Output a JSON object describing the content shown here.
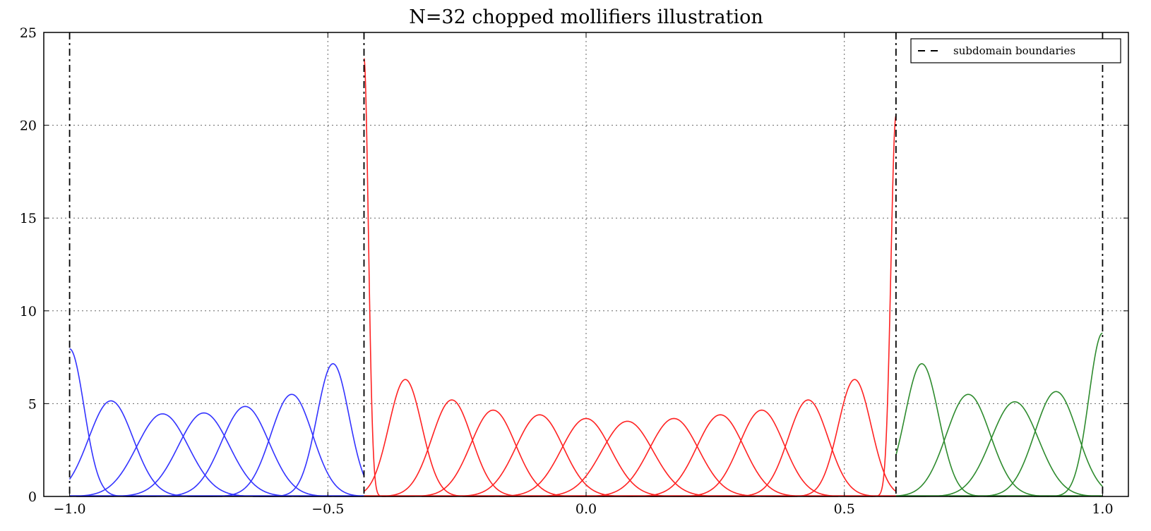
{
  "chart_data": {
    "type": "line",
    "title": "N=32 chopped mollifiers illustration",
    "xlabel": "",
    "ylabel": "",
    "xlim": [
      -1.05,
      1.05
    ],
    "ylim": [
      0,
      25
    ],
    "x_ticks": [
      -1.0,
      -0.5,
      0.0,
      0.5,
      1.0
    ],
    "x_tick_labels": [
      "−1.0",
      "−0.5",
      "0.0",
      "0.5",
      "1.0"
    ],
    "y_ticks": [
      0,
      5,
      10,
      15,
      20,
      25
    ],
    "y_tick_labels": [
      "0",
      "5",
      "10",
      "15",
      "20",
      "25"
    ],
    "grid": true,
    "grid_x": [
      -0.5,
      0.0,
      0.5
    ],
    "grid_y": [
      5,
      10,
      15,
      20
    ],
    "legend_position": "top-right",
    "legend": [
      {
        "label": "subdomain boundaries",
        "style": "dashed",
        "color": "#000000"
      }
    ],
    "subdomain_boundaries": [
      -1.0,
      -0.43,
      0.6,
      1.0
    ],
    "colors": {
      "blue": "#3333ff",
      "red": "#ff2222",
      "green": "#2e8b2e",
      "boundary": "#000000"
    },
    "curve_groups": [
      {
        "color": "blue",
        "domain": [
          -1.0,
          -0.43
        ],
        "peaks": [
          {
            "center": -1.0,
            "height": 7.95
          },
          {
            "center": -0.92,
            "height": 5.15
          },
          {
            "center": -0.82,
            "height": 4.45
          },
          {
            "center": -0.74,
            "height": 4.5
          },
          {
            "center": -0.66,
            "height": 4.85
          },
          {
            "center": -0.57,
            "height": 5.5
          },
          {
            "center": -0.49,
            "height": 7.15
          }
        ]
      },
      {
        "color": "red",
        "domain": [
          -0.43,
          0.6
        ],
        "peaks": [
          {
            "center": -0.43,
            "height": 23.6
          },
          {
            "center": -0.35,
            "height": 6.3
          },
          {
            "center": -0.26,
            "height": 5.2
          },
          {
            "center": -0.18,
            "height": 4.65
          },
          {
            "center": -0.09,
            "height": 4.4
          },
          {
            "center": 0.0,
            "height": 4.2
          },
          {
            "center": 0.08,
            "height": 4.05
          },
          {
            "center": 0.17,
            "height": 4.2
          },
          {
            "center": 0.26,
            "height": 4.4
          },
          {
            "center": 0.34,
            "height": 4.65
          },
          {
            "center": 0.43,
            "height": 5.2
          },
          {
            "center": 0.52,
            "height": 6.3
          },
          {
            "center": 0.6,
            "height": 20.5
          }
        ]
      },
      {
        "color": "green",
        "domain": [
          0.6,
          1.0
        ],
        "peaks": [
          {
            "center": 0.65,
            "height": 7.15
          },
          {
            "center": 0.74,
            "height": 5.5
          },
          {
            "center": 0.83,
            "height": 5.1
          },
          {
            "center": 0.91,
            "height": 5.65
          },
          {
            "center": 1.0,
            "height": 8.8
          }
        ]
      }
    ]
  }
}
